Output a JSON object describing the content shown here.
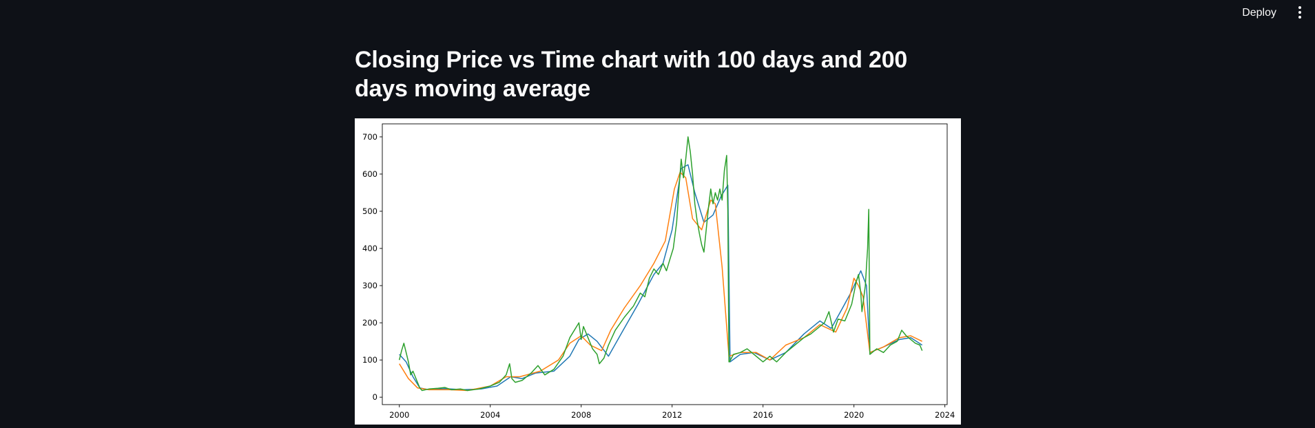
{
  "header": {
    "deploy_label": "Deploy",
    "menu_icon": "more-vertical-icon"
  },
  "page": {
    "title": "Closing Price vs Time chart with 100 days and 200 days moving average"
  },
  "chart_data": {
    "type": "line",
    "title": "",
    "xlabel": "",
    "ylabel": "",
    "xlim": [
      1999.25,
      2024.1
    ],
    "ylim": [
      -20,
      735
    ],
    "xticks": [
      "2000",
      "2004",
      "2008",
      "2012",
      "2016",
      "2020",
      "2024"
    ],
    "yticks": [
      "0",
      "100",
      "200",
      "300",
      "400",
      "500",
      "600",
      "700"
    ],
    "grid": false,
    "legend": "none",
    "series": [
      {
        "color": "#1f77b4",
        "x": [
          2000.0,
          2000.3,
          2000.6,
          2000.9,
          2001.3,
          2002.0,
          2002.8,
          2003.6,
          2004.3,
          2004.9,
          2005.4,
          2006.0,
          2006.8,
          2007.5,
          2007.9,
          2008.3,
          2008.7,
          2009.2,
          2009.8,
          2010.5,
          2011.2,
          2011.6,
          2012.0,
          2012.4,
          2012.7,
          2013.0,
          2013.4,
          2013.8,
          2014.15,
          2014.45,
          2014.55,
          2015.0,
          2015.6,
          2016.3,
          2017.0,
          2017.8,
          2018.5,
          2019.0,
          2019.5,
          2019.9,
          2020.3,
          2020.55,
          2020.7,
          2021.3,
          2022.0,
          2022.5,
          2023.0
        ],
        "values": [
          115,
          95,
          55,
          25,
          20,
          23,
          20,
          22,
          30,
          55,
          50,
          65,
          70,
          110,
          155,
          170,
          150,
          110,
          175,
          250,
          330,
          360,
          450,
          615,
          625,
          550,
          470,
          490,
          540,
          570,
          95,
          115,
          120,
          100,
          120,
          170,
          205,
          185,
          240,
          285,
          340,
          300,
          120,
          135,
          155,
          160,
          140
        ]
      },
      {
        "color": "#ff7f0e",
        "x": [
          2000.0,
          2000.4,
          2000.8,
          2001.3,
          2002.2,
          2003.0,
          2004.0,
          2004.7,
          2005.3,
          2006.2,
          2007.0,
          2007.5,
          2008.0,
          2008.4,
          2008.9,
          2009.3,
          2009.9,
          2010.6,
          2011.2,
          2011.7,
          2012.1,
          2012.35,
          2012.6,
          2012.9,
          2013.3,
          2013.7,
          2013.9,
          2014.2,
          2014.5,
          2015.0,
          2015.7,
          2016.3,
          2017.0,
          2017.8,
          2018.5,
          2019.2,
          2019.7,
          2020.0,
          2020.2,
          2020.4,
          2020.7,
          2021.3,
          2022.0,
          2022.5,
          2023.0
        ],
        "values": [
          90,
          50,
          25,
          20,
          20,
          18,
          30,
          55,
          55,
          70,
          100,
          145,
          165,
          140,
          125,
          180,
          240,
          300,
          360,
          420,
          560,
          605,
          590,
          480,
          450,
          530,
          520,
          350,
          110,
          120,
          120,
          100,
          140,
          160,
          195,
          175,
          240,
          320,
          300,
          270,
          120,
          135,
          160,
          165,
          150
        ]
      },
      {
        "color": "#2ca02c",
        "x": [
          2000.0,
          2000.1,
          2000.2,
          2000.3,
          2000.4,
          2000.5,
          2000.6,
          2000.7,
          2000.8,
          2000.9,
          2001.0,
          2001.3,
          2001.7,
          2002.0,
          2002.3,
          2002.7,
          2003.0,
          2003.5,
          2004.0,
          2004.4,
          2004.7,
          2004.85,
          2004.95,
          2005.1,
          2005.4,
          2005.8,
          2006.1,
          2006.4,
          2006.8,
          2007.2,
          2007.5,
          2007.8,
          2007.9,
          2008.0,
          2008.1,
          2008.3,
          2008.5,
          2008.7,
          2008.8,
          2009.0,
          2009.2,
          2009.5,
          2009.9,
          2010.3,
          2010.6,
          2010.8,
          2011.0,
          2011.2,
          2011.4,
          2011.6,
          2011.75,
          2011.9,
          2012.05,
          2012.2,
          2012.3,
          2012.4,
          2012.5,
          2012.6,
          2012.7,
          2012.8,
          2012.9,
          2013.0,
          2013.1,
          2013.2,
          2013.3,
          2013.4,
          2013.5,
          2013.6,
          2013.7,
          2013.8,
          2013.9,
          2014.0,
          2014.1,
          2014.2,
          2014.3,
          2014.4,
          2014.45,
          2014.5,
          2014.52,
          2014.7,
          2015.0,
          2015.3,
          2015.6,
          2016.0,
          2016.3,
          2016.6,
          2017.0,
          2017.4,
          2017.8,
          2018.1,
          2018.4,
          2018.7,
          2018.9,
          2019.1,
          2019.3,
          2019.6,
          2019.9,
          2020.1,
          2020.2,
          2020.3,
          2020.35,
          2020.5,
          2020.6,
          2020.65,
          2020.7,
          2021.0,
          2021.3,
          2021.6,
          2021.9,
          2022.1,
          2022.3,
          2022.5,
          2022.7,
          2022.9,
          2023.0
        ],
        "values": [
          100,
          125,
          145,
          120,
          95,
          60,
          70,
          55,
          40,
          25,
          18,
          22,
          24,
          26,
          20,
          22,
          18,
          22,
          30,
          40,
          60,
          90,
          50,
          40,
          45,
          65,
          85,
          60,
          75,
          110,
          160,
          190,
          200,
          155,
          190,
          160,
          130,
          115,
          90,
          105,
          140,
          180,
          215,
          245,
          280,
          270,
          320,
          345,
          330,
          360,
          340,
          370,
          400,
          470,
          560,
          640,
          590,
          640,
          700,
          660,
          600,
          520,
          475,
          440,
          410,
          390,
          450,
          510,
          560,
          520,
          550,
          530,
          560,
          530,
          610,
          650,
          500,
          95,
          95,
          115,
          120,
          130,
          115,
          95,
          110,
          95,
          120,
          140,
          160,
          170,
          185,
          200,
          230,
          175,
          210,
          205,
          250,
          310,
          330,
          280,
          230,
          300,
          400,
          505,
          115,
          130,
          120,
          140,
          150,
          180,
          165,
          155,
          145,
          140,
          125
        ]
      }
    ]
  }
}
